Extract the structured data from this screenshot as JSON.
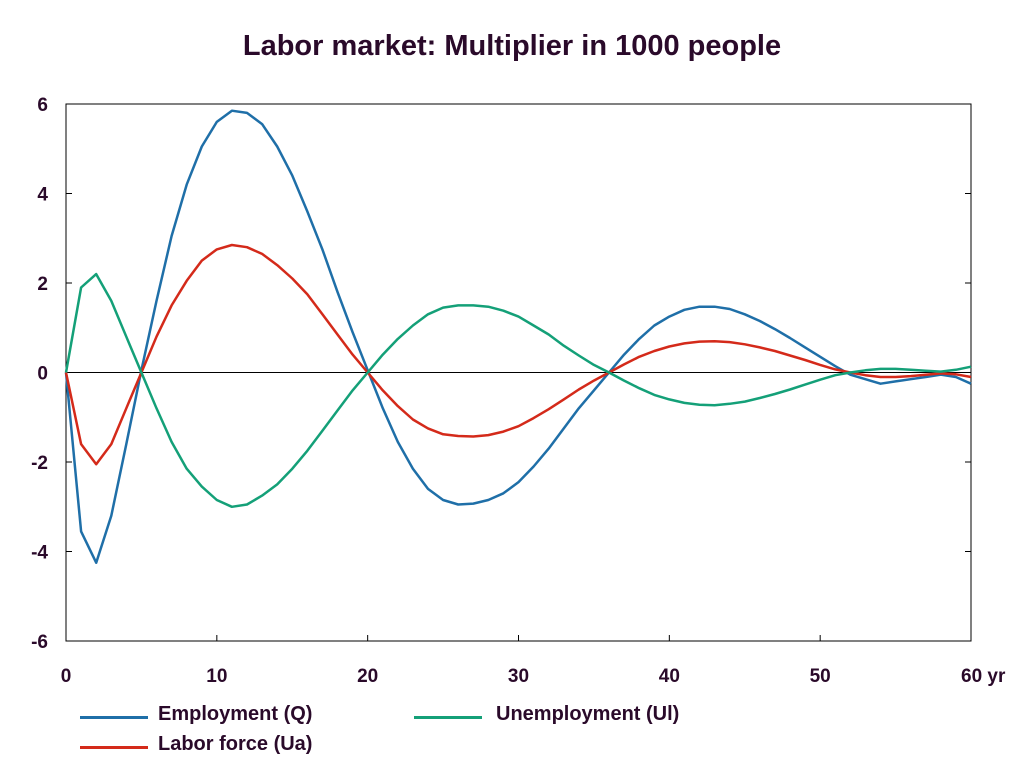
{
  "chart_data": {
    "type": "line",
    "title": "Labor market: Multiplier in 1000 people",
    "xlabel": "",
    "ylabel": "",
    "xlim": [
      0,
      60
    ],
    "ylim": [
      -6,
      6
    ],
    "x_ticks": [
      0,
      10,
      20,
      30,
      40,
      50,
      60
    ],
    "x_tick_labels": [
      "0",
      "10",
      "20",
      "30",
      "40",
      "50",
      "60 yr"
    ],
    "y_ticks": [
      6,
      4,
      2,
      0,
      -2,
      -4,
      -6
    ],
    "y_tick_labels": [
      "6",
      "4",
      "2",
      "0",
      "-2",
      "-4",
      "-6"
    ],
    "grid": false,
    "legend_position": "bottom",
    "x": [
      0,
      1,
      2,
      3,
      4,
      5,
      6,
      7,
      8,
      9,
      10,
      11,
      12,
      13,
      14,
      15,
      16,
      17,
      18,
      19,
      20,
      21,
      22,
      23,
      24,
      25,
      26,
      27,
      28,
      29,
      30,
      31,
      32,
      33,
      34,
      35,
      36,
      37,
      38,
      39,
      40,
      41,
      42,
      43,
      44,
      45,
      46,
      47,
      48,
      49,
      50,
      51,
      52,
      53,
      54,
      55,
      56,
      57,
      58,
      59,
      60
    ],
    "series": [
      {
        "name": "Employment (Q)",
        "color": "#1f6fa8",
        "values": [
          0,
          -3.55,
          -4.25,
          -3.2,
          -1.6,
          0.05,
          1.6,
          3.05,
          4.2,
          5.05,
          5.6,
          5.85,
          5.8,
          5.55,
          5.05,
          4.4,
          3.6,
          2.75,
          1.8,
          0.9,
          0.05,
          -0.8,
          -1.55,
          -2.15,
          -2.6,
          -2.85,
          -2.95,
          -2.93,
          -2.85,
          -2.7,
          -2.45,
          -2.1,
          -1.7,
          -1.25,
          -0.8,
          -0.4,
          0.0,
          0.4,
          0.75,
          1.05,
          1.25,
          1.4,
          1.47,
          1.47,
          1.42,
          1.3,
          1.15,
          0.97,
          0.77,
          0.56,
          0.35,
          0.14,
          -0.05,
          -0.15,
          -0.25,
          -0.2,
          -0.15,
          -0.1,
          -0.05,
          -0.1,
          -0.25
        ]
      },
      {
        "name": "Labor force (Ua)",
        "color": "#d42a1a",
        "values": [
          0,
          -1.6,
          -2.05,
          -1.6,
          -0.8,
          0.0,
          0.8,
          1.5,
          2.05,
          2.5,
          2.75,
          2.85,
          2.8,
          2.65,
          2.4,
          2.1,
          1.75,
          1.3,
          0.85,
          0.4,
          0.0,
          -0.4,
          -0.75,
          -1.05,
          -1.25,
          -1.38,
          -1.42,
          -1.43,
          -1.4,
          -1.32,
          -1.2,
          -1.02,
          -0.82,
          -0.6,
          -0.38,
          -0.18,
          0.0,
          0.18,
          0.35,
          0.48,
          0.58,
          0.65,
          0.69,
          0.7,
          0.68,
          0.63,
          0.56,
          0.48,
          0.38,
          0.28,
          0.17,
          0.07,
          0.0,
          -0.06,
          -0.1,
          -0.1,
          -0.08,
          -0.05,
          -0.02,
          -0.04,
          -0.1
        ]
      },
      {
        "name": "Unemployment (Ul)",
        "color": "#14a078",
        "values": [
          0,
          1.9,
          2.2,
          1.6,
          0.8,
          0.0,
          -0.8,
          -1.55,
          -2.15,
          -2.55,
          -2.85,
          -3.0,
          -2.95,
          -2.75,
          -2.5,
          -2.15,
          -1.75,
          -1.3,
          -0.85,
          -0.4,
          0.0,
          0.4,
          0.75,
          1.05,
          1.3,
          1.45,
          1.5,
          1.5,
          1.47,
          1.38,
          1.25,
          1.05,
          0.85,
          0.6,
          0.38,
          0.17,
          0.0,
          -0.18,
          -0.35,
          -0.5,
          -0.6,
          -0.68,
          -0.72,
          -0.73,
          -0.7,
          -0.65,
          -0.57,
          -0.48,
          -0.38,
          -0.27,
          -0.16,
          -0.06,
          0.0,
          0.05,
          0.08,
          0.08,
          0.06,
          0.04,
          0.02,
          0.06,
          0.13
        ]
      }
    ]
  }
}
